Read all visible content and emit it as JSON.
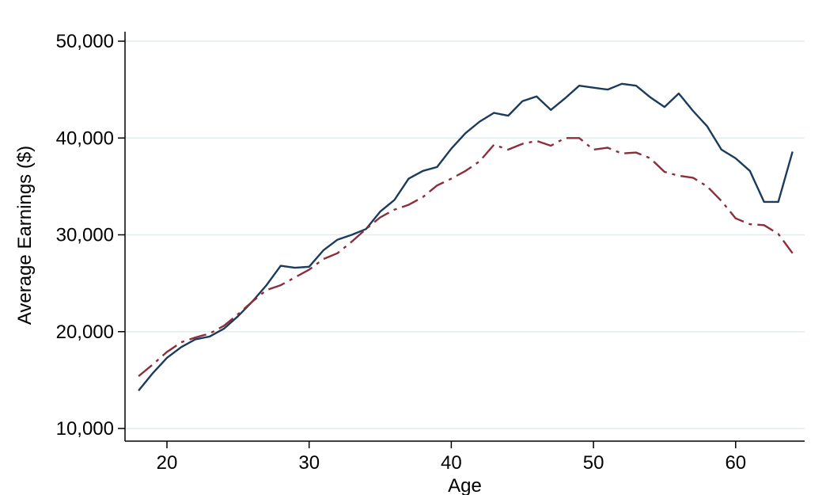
{
  "chart_data": {
    "type": "line",
    "xlabel": "Age",
    "ylabel": "Average Earnings ($)",
    "xlim": [
      18,
      64
    ],
    "ylim": [
      10000,
      50000
    ],
    "xticks": [
      20,
      30,
      40,
      50,
      60
    ],
    "xtick_labels": [
      "20",
      "30",
      "40",
      "50",
      "60"
    ],
    "yticks": [
      10000,
      20000,
      30000,
      40000,
      50000
    ],
    "ytick_labels": [
      "10,000",
      "20,000",
      "30,000",
      "40,000",
      "50,000"
    ],
    "grid": "horizontal",
    "x": [
      18,
      19,
      20,
      21,
      22,
      23,
      24,
      25,
      26,
      27,
      28,
      29,
      30,
      31,
      32,
      33,
      34,
      35,
      36,
      37,
      38,
      39,
      40,
      41,
      42,
      43,
      44,
      45,
      46,
      47,
      48,
      49,
      50,
      51,
      52,
      53,
      54,
      55,
      56,
      57,
      58,
      59,
      60,
      61,
      62,
      63,
      64
    ],
    "series": [
      {
        "color": "#1a3b5c",
        "dash": "solid",
        "values": [
          13900,
          15700,
          17300,
          18400,
          19200,
          19500,
          20300,
          21600,
          23100,
          24800,
          26800,
          26600,
          26700,
          28400,
          29500,
          30000,
          30600,
          32400,
          33600,
          35800,
          36600,
          37000,
          38900,
          40500,
          41700,
          42600,
          42300,
          43800,
          44300,
          42900,
          44100,
          45400,
          45200,
          45000,
          45600,
          45400,
          44200,
          43200,
          44600,
          42800,
          41200,
          38800,
          37900,
          36600,
          33400,
          33400,
          38600
        ]
      },
      {
        "color": "#8b2e3c",
        "dash": "longdash-dot",
        "values": [
          15400,
          16600,
          17900,
          18900,
          19400,
          19800,
          20600,
          21800,
          23100,
          24300,
          24800,
          25600,
          26400,
          27500,
          28100,
          29300,
          30600,
          31800,
          32600,
          33100,
          33900,
          35100,
          35800,
          36600,
          37600,
          39300,
          38800,
          39400,
          39700,
          39200,
          40000,
          40000,
          38800,
          39000,
          38400,
          38500,
          37900,
          36500,
          36100,
          35900,
          35000,
          33500,
          31700,
          31100,
          31000,
          30100,
          28100
        ]
      }
    ]
  }
}
